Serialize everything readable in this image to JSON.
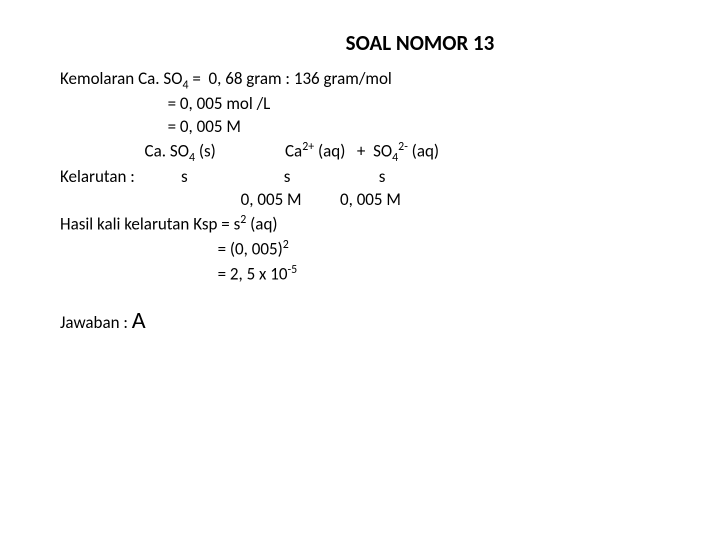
{
  "title": "SOAL NOMOR    13",
  "lines": {
    "l1a": "Kemolaran Ca. SO",
    "l1b": " =  0, 68 gram : 136 gram/mol",
    "l2": "                            = 0, 005 mol /L",
    "l3": "                            = 0, 005 M",
    "l4a": "                      Ca. SO",
    "l4b": " (s)                  Ca",
    "l4c": " (aq)   +  SO",
    "l4d": " (aq)",
    "l5": "Kelarutan :            s                         s                       s",
    "l6": "                                               0, 005 M          0, 005 M",
    "l7a": "Hasil kali kelarutan Ksp = s",
    "l7b": " (aq)",
    "l8a": "                                         = (0, 005)",
    "l9a": "                                         = 2, 5 x 10"
  },
  "subs": {
    "four": "4",
    "two": "2",
    "twoplus": "2+",
    "twominus": "2-",
    "minus5": "-5"
  },
  "answer_label": "Jawaban :  ",
  "answer_value": "A",
  "colors": {
    "bg": "#ffffff",
    "text": "#000000"
  },
  "fontsize": {
    "title": 21,
    "body": 17,
    "answer_big": 24
  }
}
